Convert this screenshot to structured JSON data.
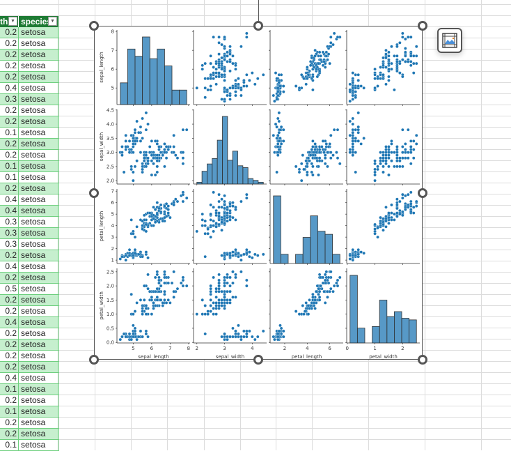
{
  "sheet": {
    "headers": [
      "th",
      "species"
    ],
    "rows": [
      [
        "0.2",
        "setosa"
      ],
      [
        "0.2",
        "setosa"
      ],
      [
        "0.2",
        "setosa"
      ],
      [
        "0.2",
        "setosa"
      ],
      [
        "0.2",
        "setosa"
      ],
      [
        "0.4",
        "setosa"
      ],
      [
        "0.3",
        "setosa"
      ],
      [
        "0.2",
        "setosa"
      ],
      [
        "0.2",
        "setosa"
      ],
      [
        "0.1",
        "setosa"
      ],
      [
        "0.2",
        "setosa"
      ],
      [
        "0.2",
        "setosa"
      ],
      [
        "0.1",
        "setosa"
      ],
      [
        "0.1",
        "setosa"
      ],
      [
        "0.2",
        "setosa"
      ],
      [
        "0.4",
        "setosa"
      ],
      [
        "0.4",
        "setosa"
      ],
      [
        "0.3",
        "setosa"
      ],
      [
        "0.3",
        "setosa"
      ],
      [
        "0.3",
        "setosa"
      ],
      [
        "0.2",
        "setosa"
      ],
      [
        "0.4",
        "setosa"
      ],
      [
        "0.2",
        "setosa"
      ],
      [
        "0.5",
        "setosa"
      ],
      [
        "0.2",
        "setosa"
      ],
      [
        "0.2",
        "setosa"
      ],
      [
        "0.4",
        "setosa"
      ],
      [
        "0.2",
        "setosa"
      ],
      [
        "0.2",
        "setosa"
      ],
      [
        "0.2",
        "setosa"
      ],
      [
        "0.2",
        "setosa"
      ],
      [
        "0.4",
        "setosa"
      ],
      [
        "0.1",
        "setosa"
      ],
      [
        "0.2",
        "setosa"
      ],
      [
        "0.1",
        "setosa"
      ],
      [
        "0.2",
        "setosa"
      ],
      [
        "0.2",
        "setosa"
      ],
      [
        "0.1",
        "setosa"
      ]
    ],
    "colors": {
      "header": "#1e7b34",
      "band": "#c6efce",
      "border": "#6fcf7f"
    }
  },
  "image_button": {
    "icon": "image-chart-icon"
  },
  "chart_data": {
    "type": "scatter",
    "kind": "pairplot",
    "color": "#1f77b4",
    "variables": [
      "sepal_length",
      "sepal_width",
      "petal_length",
      "petal_width"
    ],
    "ranges": [
      [
        4.12,
        8.08
      ],
      [
        1.88,
        4.52
      ],
      [
        0.705,
        7.195
      ],
      [
        -0.02,
        2.62
      ]
    ],
    "ticks": [
      [
        5,
        6,
        7,
        8
      ],
      [
        2.0,
        2.5,
        3.0,
        3.5,
        4.0,
        4.5
      ],
      [
        1,
        2,
        3,
        4,
        5,
        6,
        7
      ],
      [
        0.0,
        0.5,
        1.0,
        1.5,
        2.0,
        2.5
      ]
    ],
    "x_ticks": [
      [
        5,
        6,
        7,
        8
      ],
      [
        2,
        3,
        4
      ],
      [
        2,
        4,
        6
      ],
      [
        0,
        1,
        2
      ]
    ],
    "hist_bins": [
      9,
      13,
      9,
      9
    ],
    "grid": false,
    "rows": [
      [
        5.1,
        3.5,
        1.4,
        0.2
      ],
      [
        4.9,
        3.0,
        1.4,
        0.2
      ],
      [
        4.7,
        3.2,
        1.3,
        0.2
      ],
      [
        4.6,
        3.1,
        1.5,
        0.2
      ],
      [
        5.0,
        3.6,
        1.4,
        0.2
      ],
      [
        5.4,
        3.9,
        1.7,
        0.4
      ],
      [
        4.6,
        3.4,
        1.4,
        0.3
      ],
      [
        5.0,
        3.4,
        1.5,
        0.2
      ],
      [
        4.4,
        2.9,
        1.4,
        0.2
      ],
      [
        4.9,
        3.1,
        1.5,
        0.1
      ],
      [
        5.4,
        3.7,
        1.5,
        0.2
      ],
      [
        4.8,
        3.4,
        1.6,
        0.2
      ],
      [
        4.8,
        3.0,
        1.4,
        0.1
      ],
      [
        4.3,
        3.0,
        1.1,
        0.1
      ],
      [
        5.8,
        4.0,
        1.2,
        0.2
      ],
      [
        5.7,
        4.4,
        1.5,
        0.4
      ],
      [
        5.4,
        3.9,
        1.3,
        0.4
      ],
      [
        5.1,
        3.5,
        1.4,
        0.3
      ],
      [
        5.7,
        3.8,
        1.7,
        0.3
      ],
      [
        5.1,
        3.8,
        1.5,
        0.3
      ],
      [
        5.4,
        3.4,
        1.7,
        0.2
      ],
      [
        5.1,
        3.7,
        1.5,
        0.4
      ],
      [
        4.6,
        3.6,
        1.0,
        0.2
      ],
      [
        5.1,
        3.3,
        1.7,
        0.5
      ],
      [
        4.8,
        3.4,
        1.9,
        0.2
      ],
      [
        5.0,
        3.0,
        1.6,
        0.2
      ],
      [
        5.0,
        3.4,
        1.6,
        0.4
      ],
      [
        5.2,
        3.5,
        1.5,
        0.2
      ],
      [
        5.2,
        3.4,
        1.4,
        0.2
      ],
      [
        4.7,
        3.2,
        1.6,
        0.2
      ],
      [
        4.8,
        3.1,
        1.6,
        0.2
      ],
      [
        5.4,
        3.4,
        1.5,
        0.4
      ],
      [
        5.2,
        4.1,
        1.5,
        0.1
      ],
      [
        5.5,
        4.2,
        1.4,
        0.2
      ],
      [
        4.9,
        3.1,
        1.5,
        0.2
      ],
      [
        5.0,
        3.2,
        1.2,
        0.2
      ],
      [
        5.5,
        3.5,
        1.3,
        0.2
      ],
      [
        4.9,
        3.6,
        1.4,
        0.1
      ],
      [
        4.4,
        3.0,
        1.3,
        0.2
      ],
      [
        5.1,
        3.4,
        1.5,
        0.2
      ],
      [
        5.0,
        3.5,
        1.3,
        0.3
      ],
      [
        4.5,
        2.3,
        1.3,
        0.3
      ],
      [
        4.4,
        3.2,
        1.3,
        0.2
      ],
      [
        5.0,
        3.5,
        1.6,
        0.6
      ],
      [
        5.1,
        3.8,
        1.9,
        0.4
      ],
      [
        4.8,
        3.0,
        1.4,
        0.3
      ],
      [
        5.1,
        3.8,
        1.6,
        0.2
      ],
      [
        4.6,
        3.2,
        1.4,
        0.2
      ],
      [
        5.3,
        3.7,
        1.5,
        0.2
      ],
      [
        5.0,
        3.3,
        1.4,
        0.2
      ],
      [
        7.0,
        3.2,
        4.7,
        1.4
      ],
      [
        6.4,
        3.2,
        4.5,
        1.5
      ],
      [
        6.9,
        3.1,
        4.9,
        1.5
      ],
      [
        5.5,
        2.3,
        4.0,
        1.3
      ],
      [
        6.5,
        2.8,
        4.6,
        1.5
      ],
      [
        5.7,
        2.8,
        4.5,
        1.3
      ],
      [
        6.3,
        3.3,
        4.7,
        1.6
      ],
      [
        4.9,
        2.4,
        3.3,
        1.0
      ],
      [
        6.6,
        2.9,
        4.6,
        1.3
      ],
      [
        5.2,
        2.7,
        3.9,
        1.4
      ],
      [
        5.0,
        2.0,
        3.5,
        1.0
      ],
      [
        5.9,
        3.0,
        4.2,
        1.5
      ],
      [
        6.0,
        2.2,
        4.0,
        1.0
      ],
      [
        6.1,
        2.9,
        4.7,
        1.4
      ],
      [
        5.6,
        2.9,
        3.6,
        1.3
      ],
      [
        6.7,
        3.1,
        4.4,
        1.4
      ],
      [
        5.6,
        3.0,
        4.5,
        1.5
      ],
      [
        5.8,
        2.7,
        4.1,
        1.0
      ],
      [
        6.2,
        2.2,
        4.5,
        1.5
      ],
      [
        5.6,
        2.5,
        3.9,
        1.1
      ],
      [
        5.9,
        3.2,
        4.8,
        1.8
      ],
      [
        6.1,
        2.8,
        4.0,
        1.3
      ],
      [
        6.3,
        2.5,
        4.9,
        1.5
      ],
      [
        6.1,
        2.8,
        4.7,
        1.2
      ],
      [
        6.4,
        2.9,
        4.3,
        1.3
      ],
      [
        6.6,
        3.0,
        4.4,
        1.4
      ],
      [
        6.8,
        2.8,
        4.8,
        1.4
      ],
      [
        6.7,
        3.0,
        5.0,
        1.7
      ],
      [
        6.0,
        2.9,
        4.5,
        1.5
      ],
      [
        5.7,
        2.6,
        3.5,
        1.0
      ],
      [
        5.5,
        2.4,
        3.8,
        1.1
      ],
      [
        5.5,
        2.4,
        3.7,
        1.0
      ],
      [
        5.8,
        2.7,
        3.9,
        1.2
      ],
      [
        6.0,
        2.7,
        5.1,
        1.6
      ],
      [
        5.4,
        3.0,
        4.5,
        1.5
      ],
      [
        6.0,
        3.4,
        4.5,
        1.6
      ],
      [
        6.7,
        3.1,
        4.7,
        1.5
      ],
      [
        6.3,
        2.3,
        4.4,
        1.3
      ],
      [
        5.6,
        3.0,
        4.1,
        1.3
      ],
      [
        5.5,
        2.5,
        4.0,
        1.3
      ],
      [
        5.5,
        2.6,
        4.4,
        1.2
      ],
      [
        6.1,
        3.0,
        4.6,
        1.4
      ],
      [
        5.8,
        2.6,
        4.0,
        1.2
      ],
      [
        5.0,
        2.3,
        3.3,
        1.0
      ],
      [
        5.6,
        2.7,
        4.2,
        1.3
      ],
      [
        5.7,
        3.0,
        4.2,
        1.2
      ],
      [
        5.7,
        2.9,
        4.2,
        1.3
      ],
      [
        6.2,
        2.9,
        4.3,
        1.3
      ],
      [
        5.1,
        2.5,
        3.0,
        1.1
      ],
      [
        5.7,
        2.8,
        4.1,
        1.3
      ],
      [
        6.3,
        3.3,
        6.0,
        2.5
      ],
      [
        5.8,
        2.7,
        5.1,
        1.9
      ],
      [
        7.1,
        3.0,
        5.9,
        2.1
      ],
      [
        6.3,
        2.9,
        5.6,
        1.8
      ],
      [
        6.5,
        3.0,
        5.8,
        2.2
      ],
      [
        7.6,
        3.0,
        6.6,
        2.1
      ],
      [
        4.9,
        2.5,
        4.5,
        1.7
      ],
      [
        7.3,
        2.9,
        6.3,
        1.8
      ],
      [
        6.7,
        2.5,
        5.8,
        1.8
      ],
      [
        7.2,
        3.6,
        6.1,
        2.5
      ],
      [
        6.5,
        3.2,
        5.1,
        2.0
      ],
      [
        6.4,
        2.7,
        5.3,
        1.9
      ],
      [
        6.8,
        3.0,
        5.5,
        2.1
      ],
      [
        5.7,
        2.5,
        5.0,
        2.0
      ],
      [
        5.8,
        2.8,
        5.1,
        2.4
      ],
      [
        6.4,
        3.2,
        5.3,
        2.3
      ],
      [
        6.5,
        3.0,
        5.5,
        1.8
      ],
      [
        7.7,
        3.8,
        6.7,
        2.2
      ],
      [
        7.7,
        2.6,
        6.9,
        2.3
      ],
      [
        6.0,
        2.2,
        5.0,
        1.5
      ],
      [
        6.9,
        3.2,
        5.7,
        2.3
      ],
      [
        5.6,
        2.8,
        4.9,
        2.0
      ],
      [
        7.7,
        2.8,
        6.7,
        2.0
      ],
      [
        6.3,
        2.7,
        4.9,
        1.8
      ],
      [
        6.7,
        3.3,
        5.7,
        2.1
      ],
      [
        7.2,
        3.2,
        6.0,
        1.8
      ],
      [
        6.2,
        2.8,
        4.8,
        1.8
      ],
      [
        6.1,
        3.0,
        4.9,
        1.8
      ],
      [
        6.4,
        2.8,
        5.6,
        2.1
      ],
      [
        7.2,
        3.0,
        5.8,
        1.6
      ],
      [
        7.4,
        2.8,
        6.1,
        1.9
      ],
      [
        7.9,
        3.8,
        6.4,
        2.0
      ],
      [
        6.4,
        2.8,
        5.6,
        2.2
      ],
      [
        6.3,
        2.8,
        5.1,
        1.5
      ],
      [
        6.1,
        2.6,
        5.6,
        1.4
      ],
      [
        7.7,
        3.0,
        6.1,
        2.3
      ],
      [
        6.3,
        3.4,
        5.6,
        2.4
      ],
      [
        6.4,
        3.1,
        5.5,
        1.8
      ],
      [
        6.0,
        3.0,
        4.8,
        1.8
      ],
      [
        6.9,
        3.1,
        5.4,
        2.1
      ],
      [
        6.7,
        3.1,
        5.6,
        2.4
      ],
      [
        6.9,
        3.1,
        5.1,
        2.3
      ],
      [
        5.8,
        2.7,
        5.1,
        1.9
      ],
      [
        6.8,
        3.2,
        5.9,
        2.3
      ],
      [
        6.7,
        3.3,
        5.7,
        2.5
      ],
      [
        6.7,
        3.0,
        5.2,
        2.3
      ],
      [
        6.3,
        2.5,
        5.0,
        1.9
      ],
      [
        6.5,
        3.0,
        5.2,
        2.0
      ],
      [
        6.2,
        3.4,
        5.4,
        2.3
      ],
      [
        5.9,
        3.0,
        5.1,
        1.8
      ]
    ]
  }
}
